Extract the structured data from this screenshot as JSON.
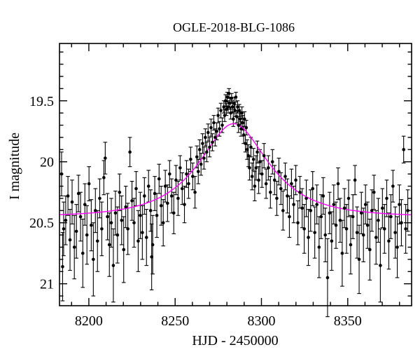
{
  "chart_data": {
    "type": "scatter",
    "title": "OGLE-2018-BLG-1086",
    "xlabel": "HJD - 2450000",
    "ylabel": "I magnitude",
    "axes": {
      "xlim": [
        8183,
        8387
      ],
      "ylim": [
        19.03,
        21.18
      ],
      "y_axis_inverted_magnitudes": true,
      "grid": false,
      "frame_color": "#000000",
      "x_major_ticks": [
        {
          "value": 8200,
          "label": "8200"
        },
        {
          "value": 8250,
          "label": "8250"
        },
        {
          "value": 8300,
          "label": "8300"
        },
        {
          "value": 8350,
          "label": "8350"
        }
      ],
      "x_minor_step": 10,
      "y_major_ticks": [
        {
          "value": 19.5,
          "label": "19.5"
        },
        {
          "value": 20,
          "label": "20"
        },
        {
          "value": 20.5,
          "label": "20.5"
        },
        {
          "value": 21,
          "label": "21"
        }
      ],
      "y_minor_step": 0.1
    },
    "model_curve": {
      "name": "paczynski-microlensing-fit",
      "color": "#ff00ff",
      "t0": 8284,
      "tE": 33,
      "u0": 0.55,
      "baseline_mag": 20.45,
      "peak_mag": 19.69
    },
    "points_color": "#000000",
    "points_format": [
      "hjd_minus_2450000",
      "i_magnitude",
      "error_mag"
    ],
    "points": [
      [
        8184.2,
        20.1,
        0.18
      ],
      [
        8184.8,
        20.86,
        0.28
      ],
      [
        8185.4,
        20.55,
        0.22
      ],
      [
        8186.6,
        20.48,
        0.2
      ],
      [
        8187.9,
        20.28,
        0.16
      ],
      [
        8189.1,
        20.64,
        0.25
      ],
      [
        8190.3,
        20.33,
        0.18
      ],
      [
        8191.6,
        20.7,
        0.26
      ],
      [
        8192.8,
        20.57,
        0.22
      ],
      [
        8194.0,
        20.26,
        0.15
      ],
      [
        8195.2,
        20.45,
        0.2
      ],
      [
        8196.5,
        20.75,
        0.28
      ],
      [
        8197.7,
        20.35,
        0.17
      ],
      [
        8198.9,
        20.6,
        0.24
      ],
      [
        8200.1,
        20.18,
        0.14
      ],
      [
        8201.4,
        20.52,
        0.21
      ],
      [
        8202.6,
        20.8,
        0.3
      ],
      [
        8203.8,
        20.4,
        0.18
      ],
      [
        8205.0,
        20.65,
        0.25
      ],
      [
        8206.3,
        20.3,
        0.16
      ],
      [
        8207.5,
        20.55,
        0.22
      ],
      [
        8208.7,
        20.13,
        0.14
      ],
      [
        8209.5,
        19.97,
        0.13
      ],
      [
        8210.8,
        20.45,
        0.19
      ],
      [
        8211.9,
        20.68,
        0.26
      ],
      [
        8213.0,
        20.5,
        0.2
      ],
      [
        8214.2,
        20.85,
        0.3
      ],
      [
        8215.4,
        20.42,
        0.18
      ],
      [
        8216.6,
        20.6,
        0.23
      ],
      [
        8217.8,
        20.25,
        0.15
      ],
      [
        8219.0,
        20.48,
        0.2
      ],
      [
        8220.2,
        20.72,
        0.27
      ],
      [
        8221.4,
        20.37,
        0.17
      ],
      [
        8222.6,
        20.55,
        0.21
      ],
      [
        8223.8,
        19.92,
        0.12
      ],
      [
        8225.0,
        20.32,
        0.16
      ],
      [
        8226.2,
        20.5,
        0.2
      ],
      [
        8227.4,
        20.22,
        0.14
      ],
      [
        8228.6,
        20.65,
        0.25
      ],
      [
        8229.8,
        20.44,
        0.19
      ],
      [
        8231.0,
        20.58,
        0.22
      ],
      [
        8232.2,
        20.28,
        0.15
      ],
      [
        8233.4,
        20.62,
        0.23
      ],
      [
        8234.6,
        20.2,
        0.13
      ],
      [
        8235.8,
        20.4,
        0.17
      ],
      [
        8236.4,
        20.78,
        0.27
      ],
      [
        8237.0,
        20.68,
        0.24
      ],
      [
        8238.2,
        20.26,
        0.14
      ],
      [
        8239.4,
        20.44,
        0.18
      ],
      [
        8240.7,
        20.14,
        0.12
      ],
      [
        8241.9,
        20.36,
        0.16
      ],
      [
        8243.1,
        20.5,
        0.19
      ],
      [
        8244.3,
        20.2,
        0.13
      ],
      [
        8245.6,
        20.34,
        0.15
      ],
      [
        8246.8,
        20.1,
        0.11
      ],
      [
        8248.0,
        20.28,
        0.14
      ],
      [
        8249.2,
        20.42,
        0.17
      ],
      [
        8250.5,
        20.15,
        0.12
      ],
      [
        8251.7,
        20.3,
        0.14
      ],
      [
        8252.9,
        20.05,
        0.1
      ],
      [
        8254.1,
        20.22,
        0.13
      ],
      [
        8255.4,
        20.35,
        0.15
      ],
      [
        8256.6,
        20.1,
        0.11
      ],
      [
        8257.8,
        20.18,
        0.12
      ],
      [
        8259.0,
        19.98,
        0.1
      ],
      [
        8260.2,
        20.12,
        0.11
      ],
      [
        8261.5,
        20.25,
        0.13
      ],
      [
        8262.6,
        19.96,
        0.09
      ],
      [
        8263.4,
        20.08,
        0.1
      ],
      [
        8264.2,
        19.9,
        0.08
      ],
      [
        8265.0,
        20.02,
        0.09
      ],
      [
        8265.9,
        19.85,
        0.08
      ],
      [
        8266.7,
        19.97,
        0.09
      ],
      [
        8267.5,
        19.8,
        0.07
      ],
      [
        8268.3,
        19.92,
        0.08
      ],
      [
        8269.1,
        19.76,
        0.07
      ],
      [
        8270.0,
        19.88,
        0.08
      ],
      [
        8270.8,
        19.72,
        0.07
      ],
      [
        8271.6,
        19.84,
        0.07
      ],
      [
        8272.4,
        19.68,
        0.06
      ],
      [
        8273.2,
        19.8,
        0.07
      ],
      [
        8274.1,
        19.75,
        0.07
      ],
      [
        8274.9,
        19.62,
        0.06
      ],
      [
        8275.7,
        19.73,
        0.06
      ],
      [
        8276.5,
        19.58,
        0.06
      ],
      [
        8277.3,
        19.7,
        0.06
      ],
      [
        8278.2,
        19.55,
        0.05
      ],
      [
        8278.7,
        19.62,
        0.05
      ],
      [
        8279.2,
        19.5,
        0.05
      ],
      [
        8279.7,
        19.57,
        0.05
      ],
      [
        8280.2,
        19.47,
        0.04
      ],
      [
        8280.7,
        19.55,
        0.05
      ],
      [
        8281.2,
        19.44,
        0.04
      ],
      [
        8281.7,
        19.52,
        0.05
      ],
      [
        8282.2,
        19.6,
        0.05
      ],
      [
        8282.7,
        19.48,
        0.04
      ],
      [
        8283.2,
        19.55,
        0.05
      ],
      [
        8283.7,
        19.65,
        0.06
      ],
      [
        8284.2,
        19.52,
        0.05
      ],
      [
        8284.7,
        19.58,
        0.05
      ],
      [
        8285.2,
        19.47,
        0.04
      ],
      [
        8285.7,
        19.63,
        0.05
      ],
      [
        8286.2,
        19.55,
        0.05
      ],
      [
        8286.7,
        19.7,
        0.06
      ],
      [
        8287.2,
        19.58,
        0.05
      ],
      [
        8287.7,
        19.65,
        0.06
      ],
      [
        8288.2,
        19.73,
        0.06
      ],
      [
        8288.7,
        19.6,
        0.05
      ],
      [
        8289.2,
        19.68,
        0.06
      ],
      [
        8289.7,
        19.78,
        0.07
      ],
      [
        8290.2,
        19.65,
        0.06
      ],
      [
        8290.7,
        19.85,
        0.07
      ],
      [
        8291.2,
        19.72,
        0.06
      ],
      [
        8291.7,
        19.9,
        0.08
      ],
      [
        8292.4,
        19.95,
        0.09
      ],
      [
        8293.1,
        20.05,
        0.1
      ],
      [
        8293.9,
        19.88,
        0.08
      ],
      [
        8294.6,
        20.12,
        0.11
      ],
      [
        8295.4,
        19.98,
        0.09
      ],
      [
        8296.1,
        20.2,
        0.12
      ],
      [
        8296.9,
        20.05,
        0.1
      ],
      [
        8297.6,
        19.92,
        0.09
      ],
      [
        8298.4,
        20.15,
        0.11
      ],
      [
        8299.1,
        20.0,
        0.1
      ],
      [
        8300.3,
        20.1,
        0.11
      ],
      [
        8301.5,
        19.95,
        0.1
      ],
      [
        8302.7,
        20.18,
        0.12
      ],
      [
        8304.0,
        20.05,
        0.1
      ],
      [
        8305.2,
        20.25,
        0.13
      ],
      [
        8306.4,
        20.0,
        0.1
      ],
      [
        8307.6,
        20.15,
        0.12
      ],
      [
        8308.9,
        20.3,
        0.14
      ],
      [
        8310.1,
        20.08,
        0.11
      ],
      [
        8311.3,
        20.22,
        0.13
      ],
      [
        8312.5,
        20.4,
        0.16
      ],
      [
        8313.8,
        20.12,
        0.11
      ],
      [
        8315.0,
        20.28,
        0.14
      ],
      [
        8316.2,
        20.45,
        0.17
      ],
      [
        8317.4,
        20.18,
        0.12
      ],
      [
        8318.7,
        20.35,
        0.15
      ],
      [
        8319.9,
        20.15,
        0.12
      ],
      [
        8321.1,
        20.5,
        0.18
      ],
      [
        8322.3,
        20.25,
        0.13
      ],
      [
        8323.6,
        20.38,
        0.16
      ],
      [
        8324.8,
        20.55,
        0.2
      ],
      [
        8326.0,
        20.3,
        0.15
      ],
      [
        8327.2,
        20.62,
        0.23
      ],
      [
        8328.5,
        20.4,
        0.17
      ],
      [
        8329.7,
        20.22,
        0.14
      ],
      [
        8330.9,
        20.58,
        0.21
      ],
      [
        8332.1,
        20.35,
        0.16
      ],
      [
        8333.4,
        20.7,
        0.25
      ],
      [
        8334.6,
        20.45,
        0.18
      ],
      [
        8335.8,
        20.28,
        0.15
      ],
      [
        8337.0,
        20.6,
        0.22
      ],
      [
        8338.3,
        20.95,
        0.32
      ],
      [
        8339.5,
        20.42,
        0.17
      ],
      [
        8340.7,
        20.65,
        0.24
      ],
      [
        8341.9,
        20.35,
        0.16
      ],
      [
        8343.2,
        20.52,
        0.19
      ],
      [
        8344.4,
        20.18,
        0.13
      ],
      [
        8345.6,
        20.48,
        0.18
      ],
      [
        8346.8,
        20.75,
        0.27
      ],
      [
        8348.1,
        20.38,
        0.16
      ],
      [
        8349.3,
        20.55,
        0.2
      ],
      [
        8350.5,
        20.3,
        0.15
      ],
      [
        8351.7,
        20.68,
        0.24
      ],
      [
        8353.0,
        20.45,
        0.18
      ],
      [
        8354.2,
        20.15,
        0.12
      ],
      [
        8355.4,
        20.58,
        0.21
      ],
      [
        8356.6,
        20.8,
        0.28
      ],
      [
        8357.9,
        20.42,
        0.17
      ],
      [
        8359.1,
        20.6,
        0.22
      ],
      [
        8360.3,
        20.35,
        0.16
      ],
      [
        8361.5,
        20.52,
        0.19
      ],
      [
        8362.8,
        20.72,
        0.25
      ],
      [
        8364.0,
        20.4,
        0.17
      ],
      [
        8365.2,
        20.25,
        0.14
      ],
      [
        8366.4,
        20.62,
        0.22
      ],
      [
        8367.7,
        20.48,
        0.18
      ],
      [
        8368.9,
        20.85,
        0.3
      ],
      [
        8370.1,
        20.38,
        0.16
      ],
      [
        8371.3,
        20.55,
        0.2
      ],
      [
        8372.6,
        20.3,
        0.15
      ],
      [
        8373.8,
        20.65,
        0.23
      ],
      [
        8375.0,
        20.45,
        0.18
      ],
      [
        8376.2,
        20.2,
        0.13
      ],
      [
        8377.5,
        20.58,
        0.21
      ],
      [
        8378.7,
        20.7,
        0.25
      ],
      [
        8379.9,
        20.35,
        0.16
      ],
      [
        8381.1,
        20.5,
        0.19
      ],
      [
        8382.4,
        19.9,
        0.11
      ],
      [
        8383.6,
        20.55,
        0.2
      ],
      [
        8384.8,
        20.4,
        0.17
      ]
    ]
  }
}
